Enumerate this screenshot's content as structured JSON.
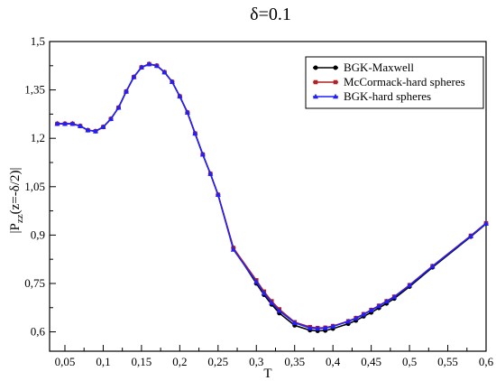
{
  "chart_data": {
    "type": "line",
    "title": "δ=0.1",
    "xlabel": "T",
    "ylabel": {
      "prefix": "|P",
      "subscript": "zz",
      "suffix": "(z=-δ/2)|"
    },
    "xlim": [
      0.03,
      0.6
    ],
    "ylim": [
      0.54,
      1.5
    ],
    "x_ticks": [
      0.05,
      0.1,
      0.15,
      0.2,
      0.25,
      0.3,
      0.35,
      0.4,
      0.45,
      0.5,
      0.55,
      0.6
    ],
    "x_tick_labels": [
      "0,05",
      "0,1",
      "0,15",
      "0,2",
      "0,25",
      "0,3",
      "0,35",
      "0,4",
      "0,45",
      "0,5",
      "0,55",
      "0,6"
    ],
    "y_ticks": [
      0.6,
      0.75,
      0.9,
      1.05,
      1.2,
      1.35,
      1.5
    ],
    "y_tick_labels": [
      "0,6",
      "0,75",
      "0,9",
      "1,05",
      "1,2",
      "1,35",
      "1,5"
    ],
    "grid": false,
    "legend_position": "top-right",
    "series": [
      {
        "name": "BGK-Maxwell",
        "color": "#000000",
        "marker": "circle",
        "x": [
          0.04,
          0.05,
          0.06,
          0.07,
          0.08,
          0.09,
          0.1,
          0.11,
          0.12,
          0.13,
          0.14,
          0.15,
          0.16,
          0.17,
          0.18,
          0.19,
          0.2,
          0.21,
          0.22,
          0.23,
          0.24,
          0.25,
          0.27,
          0.3,
          0.31,
          0.32,
          0.33,
          0.35,
          0.37,
          0.38,
          0.39,
          0.4,
          0.42,
          0.43,
          0.44,
          0.45,
          0.46,
          0.47,
          0.48,
          0.5,
          0.53,
          0.58,
          0.6
        ],
        "y": [
          1.245,
          1.245,
          1.245,
          1.238,
          1.225,
          1.222,
          1.235,
          1.26,
          1.295,
          1.345,
          1.39,
          1.42,
          1.43,
          1.425,
          1.405,
          1.375,
          1.33,
          1.28,
          1.215,
          1.15,
          1.09,
          1.025,
          0.86,
          0.75,
          0.715,
          0.685,
          0.658,
          0.62,
          0.605,
          0.603,
          0.604,
          0.61,
          0.625,
          0.635,
          0.648,
          0.66,
          0.674,
          0.688,
          0.703,
          0.74,
          0.8,
          0.895,
          0.935
        ]
      },
      {
        "name": "McCormack-hard spheres",
        "color": "#b22222",
        "marker": "square",
        "x": [
          0.04,
          0.05,
          0.06,
          0.07,
          0.08,
          0.09,
          0.1,
          0.11,
          0.12,
          0.13,
          0.14,
          0.15,
          0.16,
          0.17,
          0.18,
          0.19,
          0.2,
          0.21,
          0.22,
          0.23,
          0.24,
          0.25,
          0.27,
          0.3,
          0.31,
          0.32,
          0.33,
          0.35,
          0.37,
          0.38,
          0.39,
          0.4,
          0.42,
          0.43,
          0.44,
          0.45,
          0.46,
          0.47,
          0.48,
          0.5,
          0.53,
          0.58,
          0.6
        ],
        "y": [
          1.245,
          1.245,
          1.245,
          1.238,
          1.225,
          1.222,
          1.235,
          1.26,
          1.295,
          1.345,
          1.39,
          1.42,
          1.43,
          1.425,
          1.405,
          1.375,
          1.33,
          1.28,
          1.215,
          1.15,
          1.09,
          1.025,
          0.86,
          0.76,
          0.725,
          0.695,
          0.67,
          0.63,
          0.615,
          0.612,
          0.613,
          0.618,
          0.633,
          0.643,
          0.655,
          0.668,
          0.681,
          0.695,
          0.709,
          0.745,
          0.804,
          0.898,
          0.937
        ]
      },
      {
        "name": "BGK-hard spheres",
        "color": "#1f1fff",
        "marker": "triangle",
        "x": [
          0.04,
          0.05,
          0.06,
          0.07,
          0.08,
          0.09,
          0.1,
          0.11,
          0.12,
          0.13,
          0.14,
          0.15,
          0.16,
          0.17,
          0.18,
          0.19,
          0.2,
          0.21,
          0.22,
          0.23,
          0.24,
          0.25,
          0.27,
          0.3,
          0.31,
          0.32,
          0.33,
          0.35,
          0.37,
          0.38,
          0.39,
          0.4,
          0.42,
          0.43,
          0.44,
          0.45,
          0.46,
          0.47,
          0.48,
          0.5,
          0.53,
          0.58,
          0.6
        ],
        "y": [
          1.245,
          1.245,
          1.245,
          1.238,
          1.225,
          1.222,
          1.235,
          1.26,
          1.295,
          1.345,
          1.39,
          1.42,
          1.43,
          1.425,
          1.405,
          1.375,
          1.33,
          1.28,
          1.215,
          1.15,
          1.09,
          1.025,
          0.855,
          0.755,
          0.72,
          0.69,
          0.665,
          0.628,
          0.612,
          0.61,
          0.612,
          0.617,
          0.632,
          0.642,
          0.654,
          0.667,
          0.68,
          0.694,
          0.708,
          0.744,
          0.803,
          0.897,
          0.936
        ]
      }
    ]
  }
}
